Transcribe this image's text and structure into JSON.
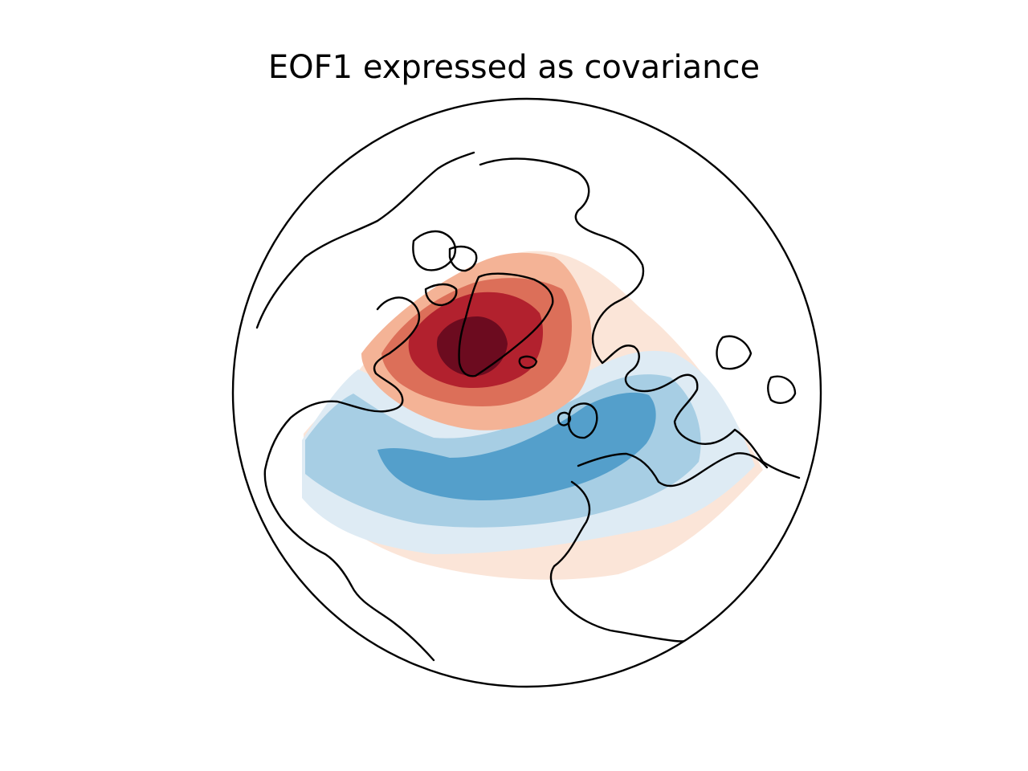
{
  "figure": {
    "title": "EOF1 expressed as covariance",
    "projection": "orthographic",
    "colormap": "RdBu_r",
    "colors": {
      "pos_weak": "#fbe5d8",
      "pos_1": "#f4b396",
      "pos_2": "#dc6f59",
      "pos_3": "#b2212e",
      "pos_4": "#6c0b1f",
      "neg_weak": "#deebf4",
      "neg_1": "#a7cee4",
      "neg_2": "#549fcb",
      "outline": "#000000"
    },
    "icons": [
      "globe-outline",
      "coastlines"
    ]
  }
}
